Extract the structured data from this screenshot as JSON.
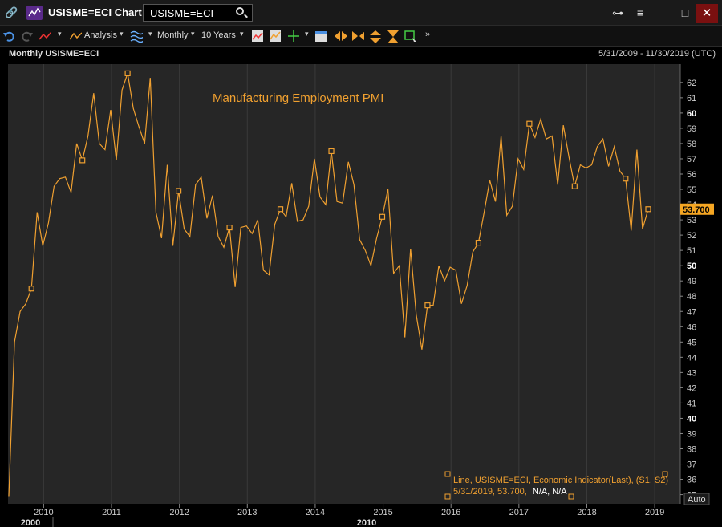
{
  "window": {
    "title": "USISME=ECI Chart",
    "search_value": "USISME=ECI",
    "minimize": "–",
    "maximize": "□",
    "close": "✕"
  },
  "toolbar": {
    "analysis_label": "Analysis",
    "interval_label": "Monthly",
    "period_label": "10 Years"
  },
  "chart_header": {
    "label": "Monthly USISME=ECI",
    "date_range": "5/31/2009 - 11/30/2019 (UTC)"
  },
  "colors": {
    "series": "#f0a030",
    "last_value_bg": "#f5a623",
    "plot_bg": "#262626",
    "grid": "#3a3a3a"
  },
  "chart_data": {
    "type": "line",
    "title": "Manufacturing Employment PMI",
    "ylim": [
      34.4,
      63.2
    ],
    "y_ticks": [
      35,
      36,
      37,
      38,
      39,
      40,
      41,
      42,
      43,
      44,
      45,
      46,
      47,
      48,
      49,
      50,
      51,
      52,
      53,
      54,
      55,
      56,
      57,
      58,
      59,
      60,
      61,
      62
    ],
    "bold_ticks": [
      40,
      50,
      60
    ],
    "x_ticks": [
      "2010",
      "2011",
      "2012",
      "2013",
      "2014",
      "2015",
      "2016",
      "2017",
      "2018",
      "2019"
    ],
    "x_major_ticks": [
      "2000",
      "2010"
    ],
    "last_value_label": "53.700",
    "auto_label": "Auto",
    "legend_line1": "Line, USISME=ECI, Economic Indicator(Last), (S1, S2)",
    "legend_line2_orange": "5/31/2019, 53.700,",
    "legend_line2_white": "N/A, N/A",
    "series": [
      {
        "values": [
          34.9,
          45.0,
          47.0,
          47.5,
          48.5,
          53.5,
          51.3,
          52.8,
          55.2,
          55.7,
          55.8,
          54.8,
          58.0,
          56.9,
          58.5,
          61.3,
          58.0,
          57.6,
          60.2,
          56.9,
          61.5,
          62.6,
          60.3,
          59.1,
          58.0,
          62.3,
          53.5,
          51.8,
          56.6,
          51.3,
          54.9,
          52.4,
          51.9,
          55.3,
          55.8,
          53.1,
          54.6,
          51.9,
          51.2,
          52.5,
          48.6,
          52.5,
          52.6,
          52.1,
          53.0,
          49.7,
          49.4,
          52.7,
          53.7,
          53.2,
          55.4,
          52.9,
          53.0,
          53.9,
          57.0,
          54.5,
          54.0,
          57.5,
          54.2,
          54.1,
          56.8,
          55.3,
          51.7,
          51.0,
          50.0,
          51.8,
          53.2,
          55.0,
          49.5,
          50.0,
          45.3,
          51.1,
          46.8,
          44.5,
          47.4,
          47.4,
          50.0,
          49.0,
          49.9,
          49.7,
          47.5,
          48.7,
          50.9,
          51.5,
          53.5,
          55.6,
          54.2,
          58.5,
          53.3,
          53.9,
          57.0,
          56.3,
          59.3,
          58.4,
          59.6,
          58.3,
          58.5,
          55.3,
          59.2,
          57.1,
          55.2,
          56.6,
          56.4,
          56.6,
          57.8,
          58.3,
          56.5,
          57.8,
          56.2,
          55.7,
          52.3,
          57.6,
          52.4,
          53.7
        ]
      }
    ]
  }
}
